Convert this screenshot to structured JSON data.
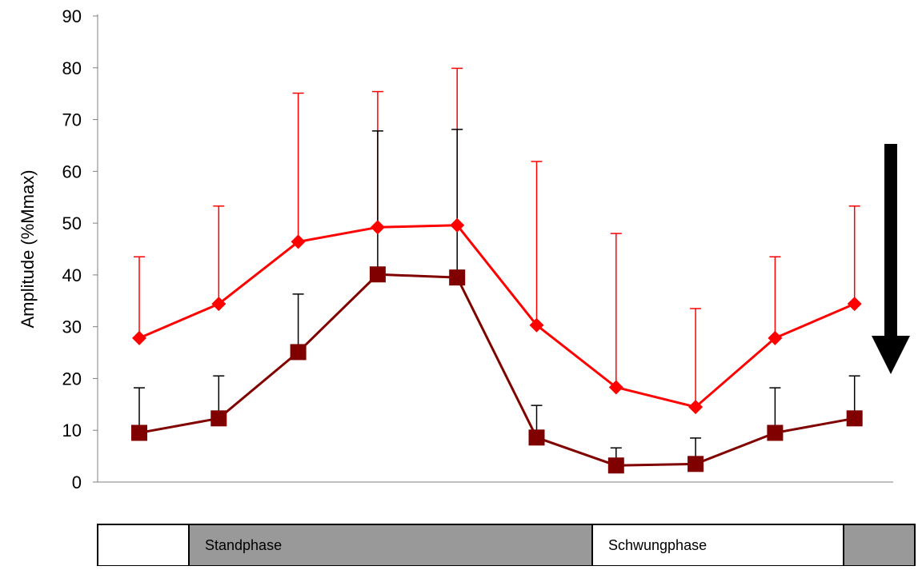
{
  "chart_data": {
    "type": "line",
    "title": "",
    "xlabel": "",
    "ylabel": "Amplitude (%Mmax)",
    "ylim": [
      0,
      90
    ],
    "yticks": [
      0,
      10,
      20,
      30,
      40,
      50,
      60,
      70,
      80,
      90
    ],
    "grid": false,
    "legend": "none",
    "x": [
      1,
      2,
      3,
      4,
      5,
      6,
      7,
      8,
      9,
      10
    ],
    "series": [
      {
        "marker": "diamond",
        "color": "#ff0000",
        "errorbar_color": "#ff0000",
        "values": [
          27.8,
          34.4,
          46.4,
          49.2,
          49.6,
          30.3,
          18.3,
          14.5,
          27.8,
          34.4
        ],
        "upper": [
          43.5,
          53.3,
          75.1,
          75.4,
          79.9,
          61.9,
          48.0,
          33.5,
          43.5,
          53.3
        ]
      },
      {
        "marker": "square",
        "color": "#800000",
        "errorbar_color": "#000000",
        "values": [
          9.5,
          12.3,
          25.1,
          40.1,
          39.5,
          8.6,
          3.2,
          3.5,
          9.5,
          12.3
        ],
        "upper": [
          18.2,
          20.5,
          36.3,
          67.8,
          68.1,
          14.8,
          6.6,
          8.5,
          18.2,
          20.5
        ]
      }
    ],
    "arrow": {
      "direction": "down",
      "color": "#000000"
    },
    "phase_bar": {
      "segments": [
        {
          "label": "",
          "fill": "#ffffff"
        },
        {
          "label": "Standphase",
          "fill": "#999999"
        },
        {
          "label": "Schwungphase",
          "fill": "#ffffff"
        },
        {
          "label": "",
          "fill": "#999999"
        }
      ]
    }
  }
}
